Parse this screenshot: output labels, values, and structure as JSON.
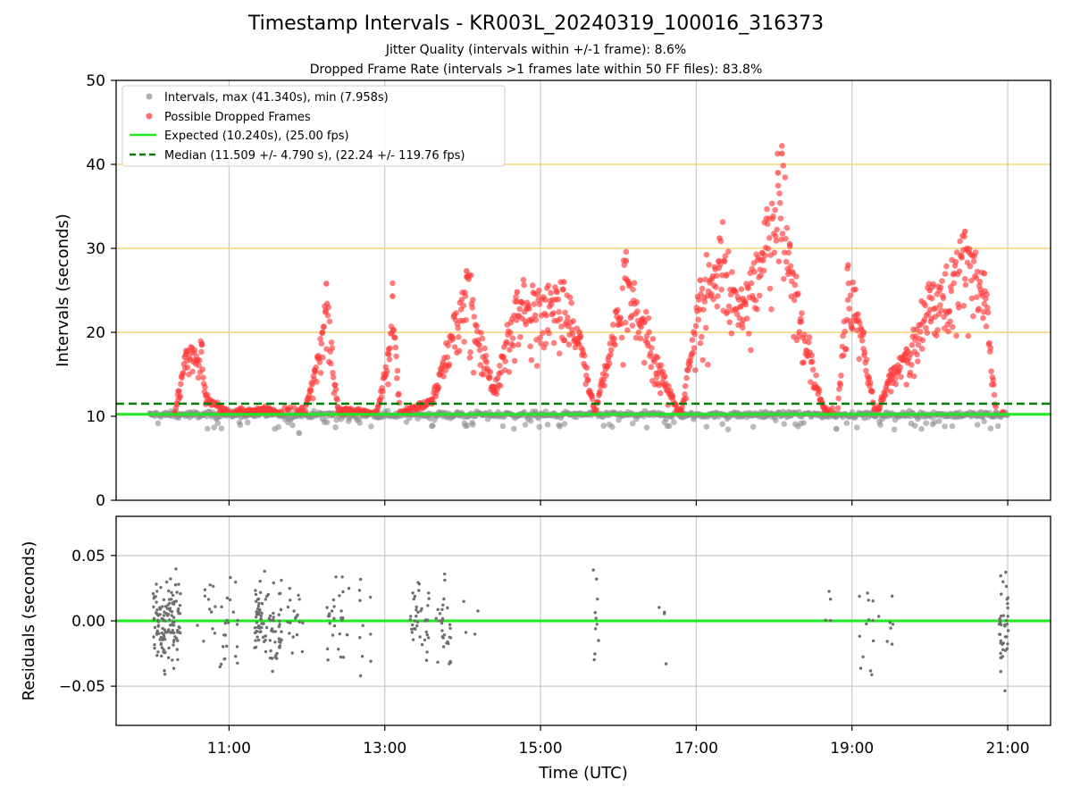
{
  "figure": {
    "title": "Timestamp Intervals - KR003L_20240319_100016_316373",
    "subtitle_jitter": "Jitter Quality (intervals within +/-1 frame): 8.6%",
    "subtitle_dropped": "Dropped Frame Rate (intervals >1 frames late within 50 FF files): 83.8%"
  },
  "chart_data": [
    {
      "type": "scatter",
      "name": "intervals",
      "ylabel": "Intervals (seconds)",
      "xlabel": "",
      "ylim": [
        0,
        50
      ],
      "xlim_hours": [
        9.55,
        21.55
      ],
      "yticks": [
        0,
        10,
        20,
        30,
        40,
        50
      ],
      "ytick_labels": [
        "0",
        "10",
        "20",
        "30",
        "40",
        "50"
      ],
      "xticks_hours": [
        11,
        13,
        15,
        17,
        19,
        21
      ],
      "grid": true,
      "reference_lines": [
        20,
        30,
        40
      ],
      "reference_line_color": "#f5d27a",
      "legend_position": "upper-left",
      "legend": [
        {
          "label": "Intervals, max (41.340s), min (7.958s)",
          "kind": "marker",
          "color": "#8c8c8c"
        },
        {
          "label": "Possible Dropped Frames",
          "kind": "marker",
          "color": "#ff3b3b"
        },
        {
          "label": "Expected (10.240s), (25.00 fps)",
          "kind": "line",
          "color": "#1ee81e"
        },
        {
          "label": "Median (11.509 +/- 4.790 s), (22.24 +/- 119.76 fps)",
          "kind": "dashed",
          "color": "#0a7a0a"
        }
      ],
      "expected_value": 10.24,
      "median_value": 11.509,
      "max_interval": 41.34,
      "min_interval": 7.958,
      "intervals_key_points": [
        {
          "x": 10.0,
          "y": 10.2
        },
        {
          "x": 10.3,
          "y": 10.5
        },
        {
          "x": 10.35,
          "y": 13.0
        },
        {
          "x": 10.45,
          "y": 17.8
        },
        {
          "x": 10.65,
          "y": 18.5
        },
        {
          "x": 10.7,
          "y": 12.5
        },
        {
          "x": 11.0,
          "y": 10.5
        },
        {
          "x": 11.5,
          "y": 11.0
        },
        {
          "x": 11.85,
          "y": 10.0
        },
        {
          "x": 11.9,
          "y": 8.0
        },
        {
          "x": 12.1,
          "y": 15.5
        },
        {
          "x": 12.2,
          "y": 20.0
        },
        {
          "x": 12.25,
          "y": 25.8
        },
        {
          "x": 12.4,
          "y": 11.0
        },
        {
          "x": 12.9,
          "y": 10.5
        },
        {
          "x": 13.05,
          "y": 18.0
        },
        {
          "x": 13.1,
          "y": 24.3
        },
        {
          "x": 13.2,
          "y": 10.5
        },
        {
          "x": 13.6,
          "y": 12.0
        },
        {
          "x": 14.05,
          "y": 27.3
        },
        {
          "x": 14.4,
          "y": 13.5
        },
        {
          "x": 14.7,
          "y": 24.8
        },
        {
          "x": 15.3,
          "y": 26.0
        },
        {
          "x": 15.5,
          "y": 20.0
        },
        {
          "x": 15.7,
          "y": 10.5
        },
        {
          "x": 16.1,
          "y": 28.5
        },
        {
          "x": 16.5,
          "y": 17.0
        },
        {
          "x": 16.8,
          "y": 10.0
        },
        {
          "x": 17.05,
          "y": 26.2
        },
        {
          "x": 17.3,
          "y": 31.2
        },
        {
          "x": 17.6,
          "y": 24.0
        },
        {
          "x": 18.05,
          "y": 39.0
        },
        {
          "x": 18.1,
          "y": 41.3
        },
        {
          "x": 18.2,
          "y": 30.5
        },
        {
          "x": 18.6,
          "y": 12.0
        },
        {
          "x": 18.8,
          "y": 8.5
        },
        {
          "x": 18.95,
          "y": 28.0
        },
        {
          "x": 19.15,
          "y": 20.0
        },
        {
          "x": 19.3,
          "y": 10.0
        },
        {
          "x": 19.5,
          "y": 15.5
        },
        {
          "x": 19.7,
          "y": 18.0
        },
        {
          "x": 20.0,
          "y": 25.0
        },
        {
          "x": 20.45,
          "y": 32.0
        },
        {
          "x": 20.7,
          "y": 27.0
        },
        {
          "x": 20.85,
          "y": 10.5
        }
      ]
    },
    {
      "type": "scatter",
      "name": "residuals",
      "ylabel": "Residuals (seconds)",
      "xlabel": "Time (UTC)",
      "ylim": [
        -0.08,
        0.08
      ],
      "yticks": [
        0.05,
        0.0,
        -0.05
      ],
      "ytick_labels": [
        "0.05",
        "0.00",
        "−0.05"
      ],
      "xlim_hours": [
        9.55,
        21.55
      ],
      "xticks_hours": [
        11,
        13,
        15,
        17,
        19,
        21
      ],
      "xtick_labels": [
        "11:00",
        "13:00",
        "15:00",
        "17:00",
        "19:00",
        "21:00"
      ],
      "grid": true,
      "zero_line_color": "#1ee81e",
      "point_color": "#6e6e6e"
    }
  ]
}
